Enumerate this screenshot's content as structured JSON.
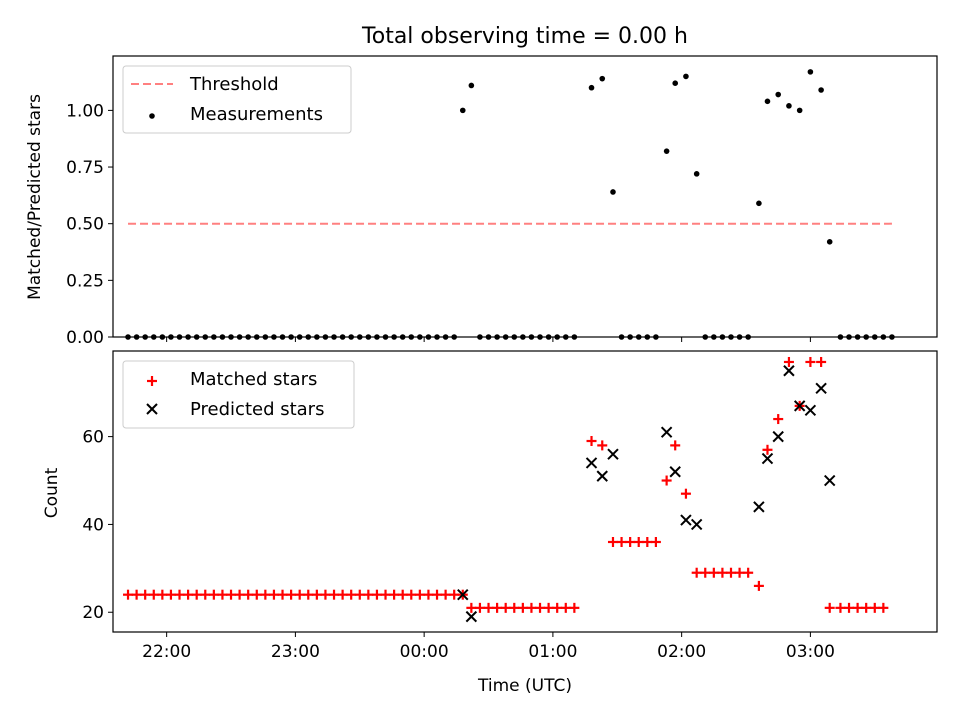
{
  "chart_data": [
    {
      "type": "scatter",
      "title": "Total observing time = 0.00 h",
      "xlabel": "",
      "ylabel": "Matched/Predicted stars",
      "ylim": [
        0,
        1.24
      ],
      "yticks": [
        0,
        0.25,
        0.5,
        0.75,
        1.0
      ],
      "ytick_labels": [
        "0.00",
        "0.25",
        "0.50",
        "0.75",
        "1.00"
      ],
      "xlim": [
        "21:35",
        "03:59"
      ],
      "xticks": [
        "22:00",
        "23:00",
        "00:00",
        "01:00",
        "02:00",
        "03:00"
      ],
      "legend": {
        "position": "upper-left",
        "entries": [
          "Threshold",
          "Measurements"
        ]
      },
      "threshold": {
        "name": "Threshold",
        "value": 0.5,
        "x_start": "21:42",
        "x_end": "03:38",
        "color": "#ff8080"
      },
      "series": [
        {
          "name": "Measurements",
          "color": "#000000",
          "points": [
            [
              "21:42",
              0
            ],
            [
              "21:46",
              0
            ],
            [
              "21:50",
              0
            ],
            [
              "21:54",
              0
            ],
            [
              "21:58",
              0
            ],
            [
              "22:02",
              0
            ],
            [
              "22:06",
              0
            ],
            [
              "22:10",
              0
            ],
            [
              "22:14",
              0
            ],
            [
              "22:18",
              0
            ],
            [
              "22:22",
              0
            ],
            [
              "22:26",
              0
            ],
            [
              "22:30",
              0
            ],
            [
              "22:34",
              0
            ],
            [
              "22:38",
              0
            ],
            [
              "22:42",
              0
            ],
            [
              "22:46",
              0
            ],
            [
              "22:50",
              0
            ],
            [
              "22:54",
              0
            ],
            [
              "22:58",
              0
            ],
            [
              "23:02",
              0
            ],
            [
              "23:06",
              0
            ],
            [
              "23:10",
              0
            ],
            [
              "23:14",
              0
            ],
            [
              "23:18",
              0
            ],
            [
              "23:22",
              0
            ],
            [
              "23:26",
              0
            ],
            [
              "23:30",
              0
            ],
            [
              "23:34",
              0
            ],
            [
              "23:38",
              0
            ],
            [
              "23:42",
              0
            ],
            [
              "23:46",
              0
            ],
            [
              "23:50",
              0
            ],
            [
              "23:54",
              0
            ],
            [
              "23:58",
              0
            ],
            [
              "00:02",
              0
            ],
            [
              "00:06",
              0
            ],
            [
              "00:10",
              0
            ],
            [
              "00:14",
              0
            ],
            [
              "00:18",
              1.0
            ],
            [
              "00:22",
              1.11
            ],
            [
              "00:26",
              0
            ],
            [
              "00:30",
              0
            ],
            [
              "00:34",
              0
            ],
            [
              "00:38",
              0
            ],
            [
              "00:42",
              0
            ],
            [
              "00:46",
              0
            ],
            [
              "00:50",
              0
            ],
            [
              "00:54",
              0
            ],
            [
              "00:58",
              0
            ],
            [
              "01:02",
              0
            ],
            [
              "01:06",
              0
            ],
            [
              "01:10",
              0
            ],
            [
              "01:18",
              1.1
            ],
            [
              "01:23",
              1.14
            ],
            [
              "01:28",
              0.64
            ],
            [
              "01:32",
              0
            ],
            [
              "01:36",
              0
            ],
            [
              "01:40",
              0
            ],
            [
              "01:44",
              0
            ],
            [
              "01:48",
              0
            ],
            [
              "01:53",
              0.82
            ],
            [
              "01:57",
              1.12
            ],
            [
              "02:02",
              1.15
            ],
            [
              "02:07",
              0.72
            ],
            [
              "02:11",
              0
            ],
            [
              "02:15",
              0
            ],
            [
              "02:19",
              0
            ],
            [
              "02:23",
              0
            ],
            [
              "02:27",
              0
            ],
            [
              "02:31",
              0
            ],
            [
              "02:36",
              0.59
            ],
            [
              "02:40",
              1.04
            ],
            [
              "02:45",
              1.07
            ],
            [
              "02:50",
              1.02
            ],
            [
              "02:55",
              1.0
            ],
            [
              "03:00",
              1.17
            ],
            [
              "03:05",
              1.09
            ],
            [
              "03:09",
              0.42
            ],
            [
              "03:14",
              0
            ],
            [
              "03:18",
              0
            ],
            [
              "03:22",
              0
            ],
            [
              "03:26",
              0
            ],
            [
              "03:30",
              0
            ],
            [
              "03:34",
              0
            ],
            [
              "03:38",
              0
            ]
          ]
        }
      ]
    },
    {
      "type": "scatter",
      "title": "",
      "xlabel": "Time (UTC)",
      "ylabel": "Count",
      "ylim": [
        15.5,
        79.5
      ],
      "yticks": [
        20,
        40,
        60
      ],
      "ytick_labels": [
        "20",
        "40",
        "60"
      ],
      "xlim": [
        "21:35",
        "03:59"
      ],
      "xticks": [
        "22:00",
        "23:00",
        "00:00",
        "01:00",
        "02:00",
        "03:00"
      ],
      "xtick_labels": [
        "22:00",
        "23:00",
        "00:00",
        "01:00",
        "02:00",
        "03:00"
      ],
      "legend": {
        "position": "upper-left",
        "entries": [
          "Matched stars",
          "Predicted stars"
        ]
      },
      "series": [
        {
          "name": "Matched stars",
          "marker": "plus",
          "color": "#ff0000",
          "points": [
            [
              "21:42",
              24
            ],
            [
              "21:46",
              24
            ],
            [
              "21:50",
              24
            ],
            [
              "21:54",
              24
            ],
            [
              "21:58",
              24
            ],
            [
              "22:02",
              24
            ],
            [
              "22:06",
              24
            ],
            [
              "22:10",
              24
            ],
            [
              "22:14",
              24
            ],
            [
              "22:18",
              24
            ],
            [
              "22:22",
              24
            ],
            [
              "22:26",
              24
            ],
            [
              "22:30",
              24
            ],
            [
              "22:34",
              24
            ],
            [
              "22:38",
              24
            ],
            [
              "22:42",
              24
            ],
            [
              "22:46",
              24
            ],
            [
              "22:50",
              24
            ],
            [
              "22:54",
              24
            ],
            [
              "22:58",
              24
            ],
            [
              "23:02",
              24
            ],
            [
              "23:06",
              24
            ],
            [
              "23:10",
              24
            ],
            [
              "23:14",
              24
            ],
            [
              "23:18",
              24
            ],
            [
              "23:22",
              24
            ],
            [
              "23:26",
              24
            ],
            [
              "23:30",
              24
            ],
            [
              "23:34",
              24
            ],
            [
              "23:38",
              24
            ],
            [
              "23:42",
              24
            ],
            [
              "23:46",
              24
            ],
            [
              "23:50",
              24
            ],
            [
              "23:54",
              24
            ],
            [
              "23:58",
              24
            ],
            [
              "00:02",
              24
            ],
            [
              "00:06",
              24
            ],
            [
              "00:10",
              24
            ],
            [
              "00:14",
              24
            ],
            [
              "00:18",
              24
            ],
            [
              "00:22",
              21
            ],
            [
              "00:26",
              21
            ],
            [
              "00:30",
              21
            ],
            [
              "00:34",
              21
            ],
            [
              "00:38",
              21
            ],
            [
              "00:42",
              21
            ],
            [
              "00:46",
              21
            ],
            [
              "00:50",
              21
            ],
            [
              "00:54",
              21
            ],
            [
              "00:58",
              21
            ],
            [
              "01:02",
              21
            ],
            [
              "01:06",
              21
            ],
            [
              "01:10",
              21
            ],
            [
              "01:18",
              59
            ],
            [
              "01:23",
              58
            ],
            [
              "01:28",
              36
            ],
            [
              "01:32",
              36
            ],
            [
              "01:36",
              36
            ],
            [
              "01:40",
              36
            ],
            [
              "01:44",
              36
            ],
            [
              "01:48",
              36
            ],
            [
              "01:53",
              50
            ],
            [
              "01:57",
              58
            ],
            [
              "02:02",
              47
            ],
            [
              "02:07",
              29
            ],
            [
              "02:11",
              29
            ],
            [
              "02:15",
              29
            ],
            [
              "02:19",
              29
            ],
            [
              "02:23",
              29
            ],
            [
              "02:27",
              29
            ],
            [
              "02:31",
              29
            ],
            [
              "02:36",
              26
            ],
            [
              "02:40",
              57
            ],
            [
              "02:45",
              64
            ],
            [
              "02:50",
              77
            ],
            [
              "02:55",
              67
            ],
            [
              "03:00",
              77
            ],
            [
              "03:05",
              77
            ],
            [
              "03:09",
              21
            ],
            [
              "03:14",
              21
            ],
            [
              "03:18",
              21
            ],
            [
              "03:22",
              21
            ],
            [
              "03:26",
              21
            ],
            [
              "03:30",
              21
            ],
            [
              "03:34",
              21
            ]
          ]
        },
        {
          "name": "Predicted stars",
          "marker": "x",
          "color": "#000000",
          "points": [
            [
              "00:18",
              24
            ],
            [
              "00:22",
              19
            ],
            [
              "01:18",
              54
            ],
            [
              "01:23",
              51
            ],
            [
              "01:28",
              56
            ],
            [
              "01:53",
              61
            ],
            [
              "01:57",
              52
            ],
            [
              "02:02",
              41
            ],
            [
              "02:07",
              40
            ],
            [
              "02:36",
              44
            ],
            [
              "02:40",
              55
            ],
            [
              "02:45",
              60
            ],
            [
              "02:50",
              75
            ],
            [
              "02:55",
              67
            ],
            [
              "03:00",
              66
            ],
            [
              "03:05",
              71
            ],
            [
              "03:09",
              50
            ]
          ]
        }
      ]
    }
  ]
}
